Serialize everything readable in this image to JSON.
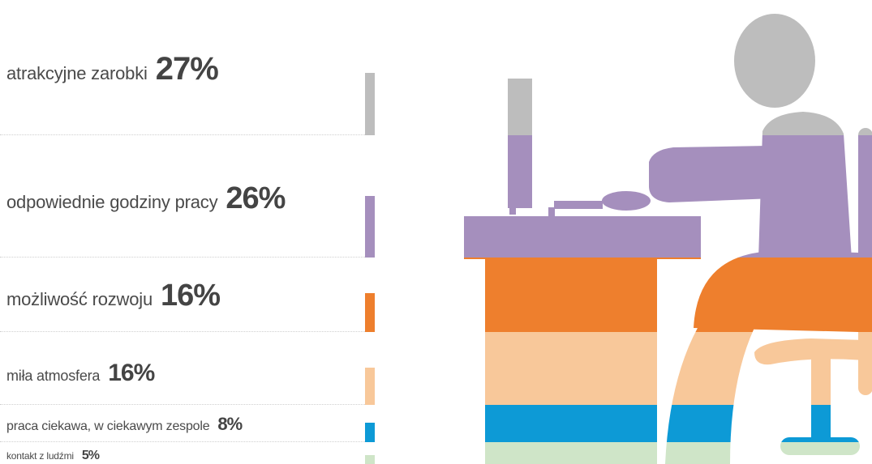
{
  "chart_data": {
    "type": "bar",
    "categories": [
      "atrakcyjne zarobki",
      "odpowiednie godziny pracy",
      "możliwość rozwoju",
      "miła atmosfera",
      "praca ciekawa, w ciekawym zespole",
      "kontakt z ludźmi"
    ],
    "values": [
      27,
      26,
      16,
      16,
      8,
      5
    ],
    "value_labels": [
      "27%",
      "26%",
      "16%",
      "16%",
      "8%",
      "5%"
    ],
    "colors": [
      "#bdbdbd",
      "#a58fbd",
      "#ee7f2d",
      "#f8c89a",
      "#0d9ad6",
      "#cfe5c8"
    ],
    "unit": "%",
    "title": "",
    "xlabel": "",
    "ylabel": ""
  },
  "illustration": {
    "icon": "person-at-desk-icon",
    "description_colors": "stacked horizontal bands matching bar colors"
  }
}
